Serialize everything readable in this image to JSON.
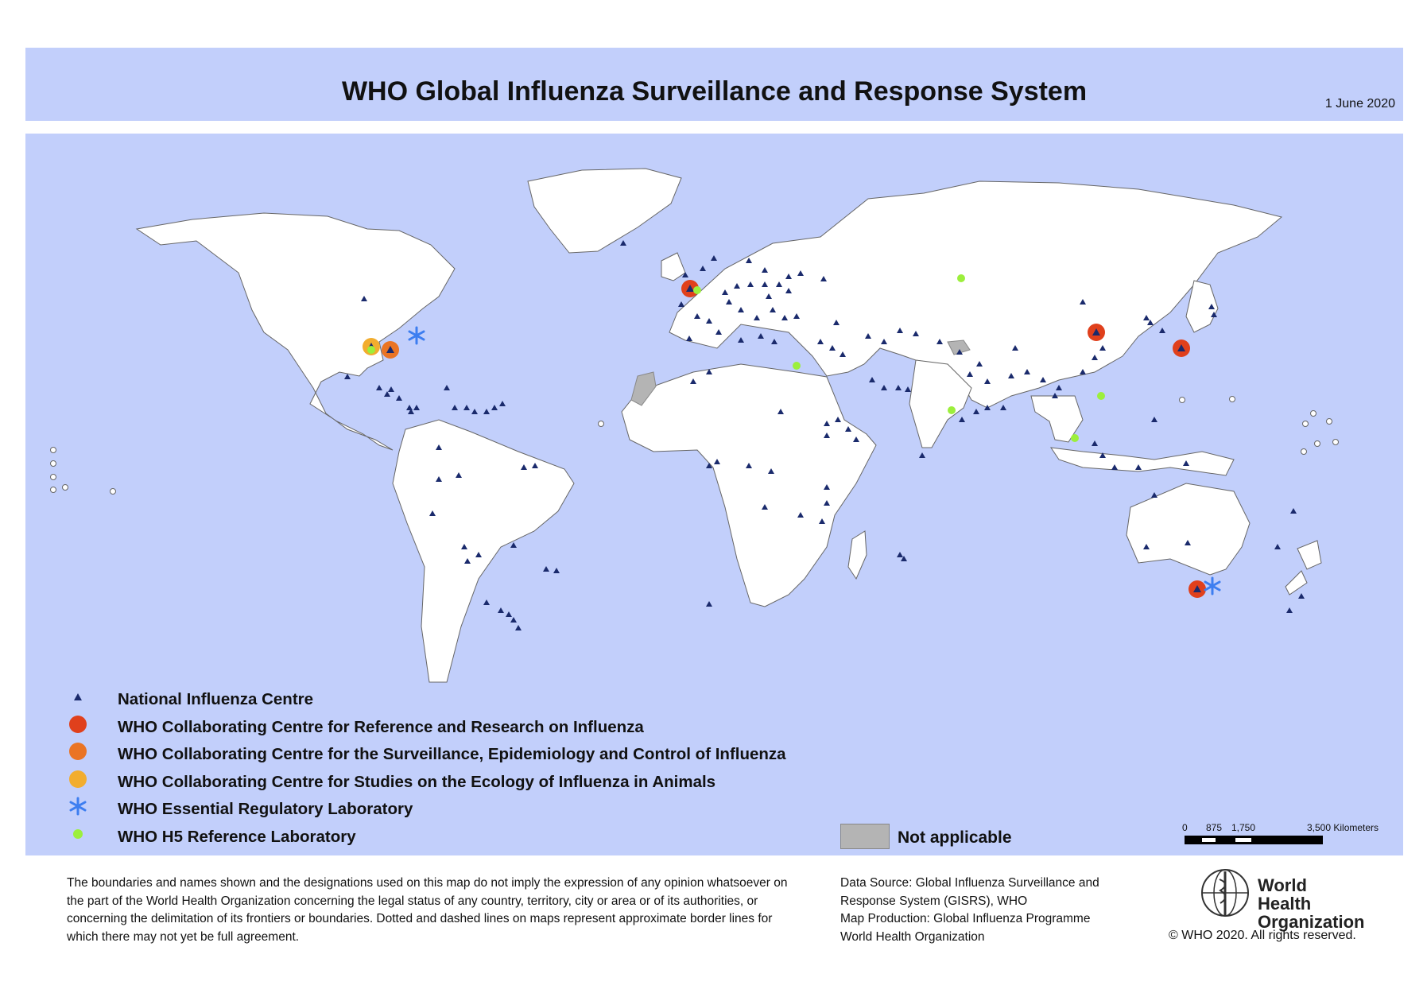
{
  "header": {
    "title": "WHO Global Influenza Surveillance and Response System",
    "date": "1 June 2020"
  },
  "colors": {
    "background_ocean": "#c2cffb",
    "land": "#ffffff",
    "national_influenza_centre": "#1a2a6c",
    "collaborating_reference_research": "#e0401c",
    "collaborating_surveillance_epidemiology": "#ea7424",
    "collaborating_ecology_animals": "#f2ad2e",
    "essential_regulatory_lab": "#3d7ef0",
    "h5_reference_lab": "#9cef3c",
    "not_applicable": "#b4b4b4"
  },
  "legend": [
    {
      "symbol": "triangle-icon",
      "label": "National Influenza Centre"
    },
    {
      "symbol": "red-circle-icon",
      "label": "WHO Collaborating Centre for Reference and Research on Influenza"
    },
    {
      "symbol": "orange-circle-icon",
      "label": "WHO Collaborating Centre for the Surveillance, Epidemiology and Control of Influenza"
    },
    {
      "symbol": "yellow-circle-icon",
      "label": "WHO Collaborating Centre for Studies on the Ecology of Influenza in Animals"
    },
    {
      "symbol": "asterisk-icon",
      "label": "WHO Essential Regulatory Laboratory"
    },
    {
      "symbol": "green-dot-icon",
      "label": "WHO H5 Reference Laboratory"
    }
  ],
  "not_applicable": {
    "label": "Not applicable"
  },
  "scale_bar": {
    "ticks": [
      "0",
      "875",
      "1,750",
      "3,500 Kilometers"
    ]
  },
  "footer": {
    "disclaimer": "The boundaries and names shown and the designations used on this map do not imply the expression of any opinion whatsoever on the part of the World Health Organization concerning the legal status of any country, territory, city or area or of its authorities, or concerning the delimitation of its frontiers or boundaries. Dotted and dashed lines on maps represent approximate border lines for which there may not yet be full agreement.",
    "data_source_lines": [
      "Data Source: Global Influenza Surveillance and",
      "Response System (GISRS), WHO",
      "Map Production: Global Influenza Programme",
      "World Health Organization"
    ],
    "logo_line1": "World Health",
    "logo_line2": "Organization",
    "copyright": "© WHO 2020. All rights reserved."
  }
}
